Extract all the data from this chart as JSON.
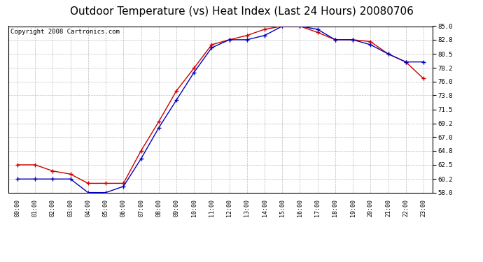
{
  "title": "Outdoor Temperature (vs) Heat Index (Last 24 Hours) 20080706",
  "copyright": "Copyright 2008 Cartronics.com",
  "x_labels": [
    "00:00",
    "01:00",
    "02:00",
    "03:00",
    "04:00",
    "05:00",
    "06:00",
    "07:00",
    "08:00",
    "09:00",
    "10:00",
    "11:00",
    "12:00",
    "13:00",
    "14:00",
    "15:00",
    "16:00",
    "17:00",
    "18:00",
    "19:00",
    "20:00",
    "21:00",
    "22:00",
    "23:00"
  ],
  "temp_blue": [
    60.2,
    60.2,
    60.2,
    60.2,
    58.0,
    58.0,
    59.0,
    63.5,
    68.5,
    73.0,
    77.5,
    81.5,
    82.8,
    82.8,
    83.5,
    85.0,
    85.0,
    84.5,
    82.8,
    82.8,
    82.0,
    80.5,
    79.2,
    79.2
  ],
  "heat_red": [
    62.5,
    62.5,
    61.5,
    61.0,
    59.5,
    59.5,
    59.5,
    64.8,
    69.5,
    74.5,
    78.2,
    82.0,
    82.8,
    83.5,
    84.5,
    85.0,
    85.0,
    84.0,
    82.8,
    82.8,
    82.5,
    80.5,
    79.2,
    76.5
  ],
  "ylim_min": 58.0,
  "ylim_max": 85.0,
  "yticks": [
    58.0,
    60.2,
    62.5,
    64.8,
    67.0,
    69.2,
    71.5,
    73.8,
    76.0,
    78.2,
    80.5,
    82.8,
    85.0
  ],
  "blue_color": "#0000bb",
  "red_color": "#cc0000",
  "bg_color": "#ffffff",
  "grid_color": "#aaaaaa",
  "title_fontsize": 11,
  "copyright_fontsize": 6.5
}
